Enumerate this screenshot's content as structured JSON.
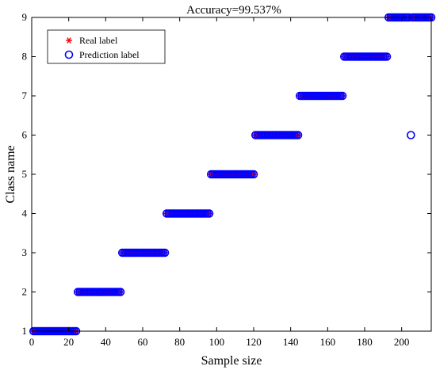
{
  "chart_data": {
    "type": "scatter",
    "title": "Accuracy=99.537%",
    "xlabel": "Sample size",
    "ylabel": "Class name",
    "xlim": [
      0,
      216
    ],
    "ylim": [
      1,
      9
    ],
    "x_ticks": [
      "0",
      "20",
      "40",
      "60",
      "80",
      "100",
      "120",
      "140",
      "160",
      "180",
      "200"
    ],
    "y_ticks": [
      "1",
      "2",
      "3",
      "4",
      "5",
      "6",
      "7",
      "8",
      "9"
    ],
    "grid": false,
    "legend_position": "top-left",
    "series": [
      {
        "name": "Real label",
        "marker": "asterisk",
        "color": "#ff0000",
        "segments": [
          {
            "class": 1,
            "x_start": 1,
            "x_end": 24
          },
          {
            "class": 2,
            "x_start": 25,
            "x_end": 48
          },
          {
            "class": 3,
            "x_start": 49,
            "x_end": 72
          },
          {
            "class": 4,
            "x_start": 73,
            "x_end": 96
          },
          {
            "class": 5,
            "x_start": 97,
            "x_end": 120
          },
          {
            "class": 6,
            "x_start": 121,
            "x_end": 144
          },
          {
            "class": 7,
            "x_start": 145,
            "x_end": 168
          },
          {
            "class": 8,
            "x_start": 169,
            "x_end": 192
          },
          {
            "class": 9,
            "x_start": 193,
            "x_end": 216
          }
        ]
      },
      {
        "name": "Prediction label",
        "marker": "circle",
        "color": "#0000ff",
        "segments": [
          {
            "class": 1,
            "x_start": 1,
            "x_end": 24
          },
          {
            "class": 2,
            "x_start": 25,
            "x_end": 48
          },
          {
            "class": 3,
            "x_start": 49,
            "x_end": 72
          },
          {
            "class": 4,
            "x_start": 73,
            "x_end": 96
          },
          {
            "class": 5,
            "x_start": 97,
            "x_end": 120
          },
          {
            "class": 6,
            "x_start": 121,
            "x_end": 144
          },
          {
            "class": 7,
            "x_start": 145,
            "x_end": 168
          },
          {
            "class": 8,
            "x_start": 169,
            "x_end": 192
          },
          {
            "class": 9,
            "x_start": 193,
            "x_end": 204
          },
          {
            "class": 9,
            "x_start": 206,
            "x_end": 216
          }
        ],
        "outliers": [
          {
            "x": 205,
            "class": 6
          }
        ]
      }
    ]
  }
}
